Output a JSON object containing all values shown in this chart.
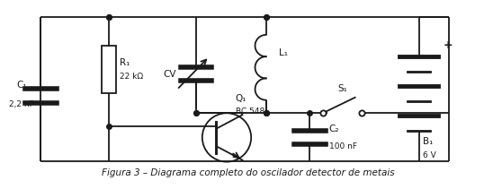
{
  "bg_color": "#ffffff",
  "line_color": "#1a1a1a",
  "title": "Figura 3 – Diagrama completo do oscilador detector de metais",
  "title_fontsize": 7.5,
  "components": {
    "C1_label": "C₁",
    "C1_value": "2,2 nF",
    "R1_label": "R₁",
    "R1_value": "22 kΩ",
    "CV_label": "CV",
    "L1_label": "L₁",
    "S1_label": "S₁",
    "Q1_label": "Q₁",
    "Q1_value": "BC 548",
    "C2_label": "C₂",
    "C2_value": "100 nF",
    "B1_label": "B₁",
    "B1_value": "6 V",
    "plus_label": "+"
  }
}
